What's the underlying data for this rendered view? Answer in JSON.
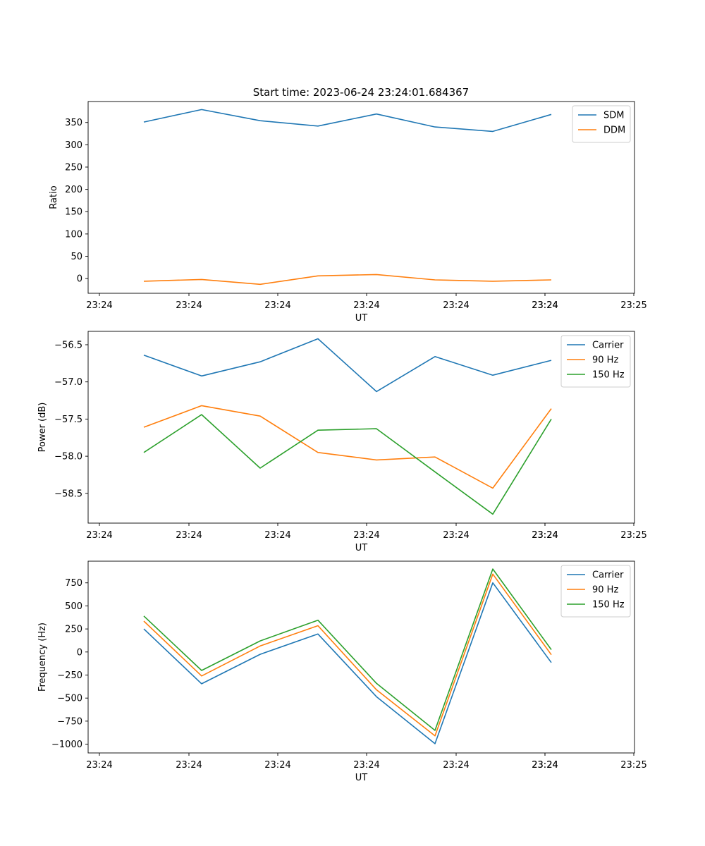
{
  "figure_title": "Start time: 2023-06-24 23:24:01.684367",
  "colors": {
    "blue": "#1f77b4",
    "orange": "#ff7f0e",
    "green": "#2ca02c"
  },
  "chart_data": [
    {
      "type": "line",
      "xlabel": "UT",
      "ylabel": "Ratio",
      "x_tick_labels": [
        "23:24",
        "23:24",
        "23:24",
        "23:24",
        "23:24",
        "23:24",
        "23:24",
        "23:25"
      ],
      "yticks": [
        0,
        50,
        100,
        150,
        200,
        250,
        300,
        350
      ],
      "ylim": [
        -33,
        397
      ],
      "legend_position": "upper-right",
      "series": [
        {
          "name": "SDM",
          "color": "#1f77b4",
          "values": [
            351,
            379,
            354,
            342,
            369,
            340,
            330,
            368
          ]
        },
        {
          "name": "DDM",
          "color": "#ff7f0e",
          "values": [
            -6,
            -2,
            -13,
            6,
            9,
            -3,
            -6,
            -3
          ]
        }
      ]
    },
    {
      "type": "line",
      "xlabel": "UT",
      "ylabel": "Power (dB)",
      "x_tick_labels": [
        "23:24",
        "23:24",
        "23:24",
        "23:24",
        "23:24",
        "23:24",
        "23:24",
        "23:25"
      ],
      "yticks": [
        -58.5,
        -58.0,
        -57.5,
        -57.0,
        -56.5
      ],
      "ytick_labels": [
        "−58.5",
        "−58.0",
        "−57.5",
        "−57.0",
        "−56.5"
      ],
      "ylim": [
        -58.9,
        -56.32
      ],
      "legend_position": "upper-right",
      "series": [
        {
          "name": "Carrier",
          "color": "#1f77b4",
          "values": [
            -56.64,
            -56.92,
            -56.73,
            -56.42,
            -57.13,
            -56.66,
            -56.91,
            -56.71
          ]
        },
        {
          "name": "90 Hz",
          "color": "#ff7f0e",
          "values": [
            -57.61,
            -57.32,
            -57.46,
            -57.95,
            -58.05,
            -58.01,
            -58.43,
            -57.36
          ]
        },
        {
          "name": "150 Hz",
          "color": "#2ca02c",
          "values": [
            -57.95,
            -57.44,
            -58.16,
            -57.65,
            -57.63,
            -58.21,
            -58.78,
            -57.5
          ]
        }
      ]
    },
    {
      "type": "line",
      "xlabel": "UT",
      "ylabel": "Frequency (Hz)",
      "x_tick_labels": [
        "23:24",
        "23:24",
        "23:24",
        "23:24",
        "23:24",
        "23:24",
        "23:24",
        "23:25"
      ],
      "yticks": [
        -1000,
        -750,
        -500,
        -250,
        0,
        250,
        500,
        750
      ],
      "ytick_labels": [
        "−1000",
        "−750",
        "−500",
        "−250",
        "0",
        "250",
        "500",
        "750"
      ],
      "ylim": [
        -1095,
        985
      ],
      "legend_position": "upper-right",
      "series": [
        {
          "name": "Carrier",
          "color": "#1f77b4",
          "values": [
            250,
            -345,
            -25,
            195,
            -485,
            -995,
            750,
            -115
          ]
        },
        {
          "name": "90 Hz",
          "color": "#ff7f0e",
          "values": [
            335,
            -260,
            65,
            285,
            -410,
            -910,
            845,
            -30
          ]
        },
        {
          "name": "150 Hz",
          "color": "#2ca02c",
          "values": [
            390,
            -200,
            120,
            345,
            -340,
            -850,
            900,
            25
          ]
        }
      ]
    }
  ]
}
